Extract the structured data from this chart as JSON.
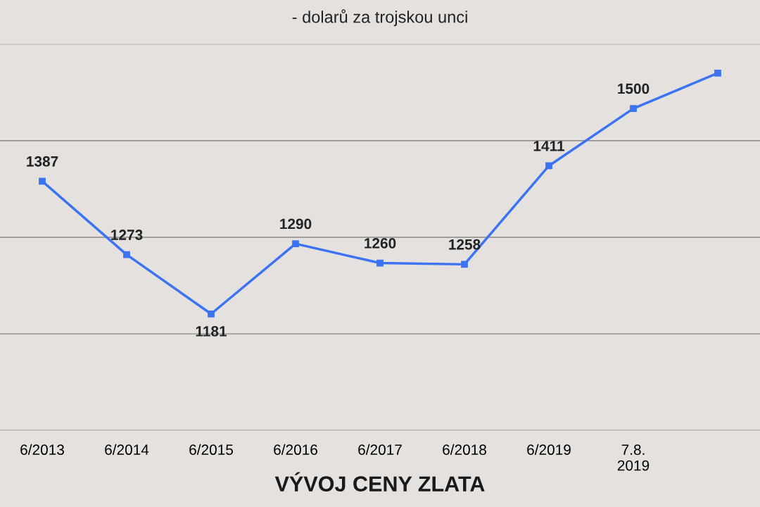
{
  "chart_data": {
    "type": "line",
    "title": "VÝVOJ CENY ZLATA",
    "subtitle": "- dolarů za trojskou unci",
    "categories": [
      "6/2013",
      "6/2014",
      "6/2015",
      "6/2016",
      "6/2017",
      "6/2018",
      "6/2019",
      "7.8.\n2019",
      null
    ],
    "series": [
      {
        "color": "#3b73f2",
        "values": [
          1387,
          1273,
          1181,
          1290,
          1260,
          1258,
          1411,
          1500,
          1555
        ],
        "value_labels": [
          "1387",
          "1273",
          "1181",
          "1290",
          "1260",
          "1258",
          "1411",
          "1500",
          null
        ]
      }
    ],
    "ylim": [
      1000,
      1600
    ],
    "yticks": [
      {
        "value": 1000,
        "label": null
      },
      {
        "value": 1150,
        "label": null
      },
      {
        "value": 1300,
        "label": null
      },
      {
        "value": 1450,
        "label": null
      },
      {
        "value": 1600,
        "label": null
      }
    ],
    "tick_labels": "x",
    "grid": "y",
    "marker": "square",
    "line_style": "solid"
  }
}
